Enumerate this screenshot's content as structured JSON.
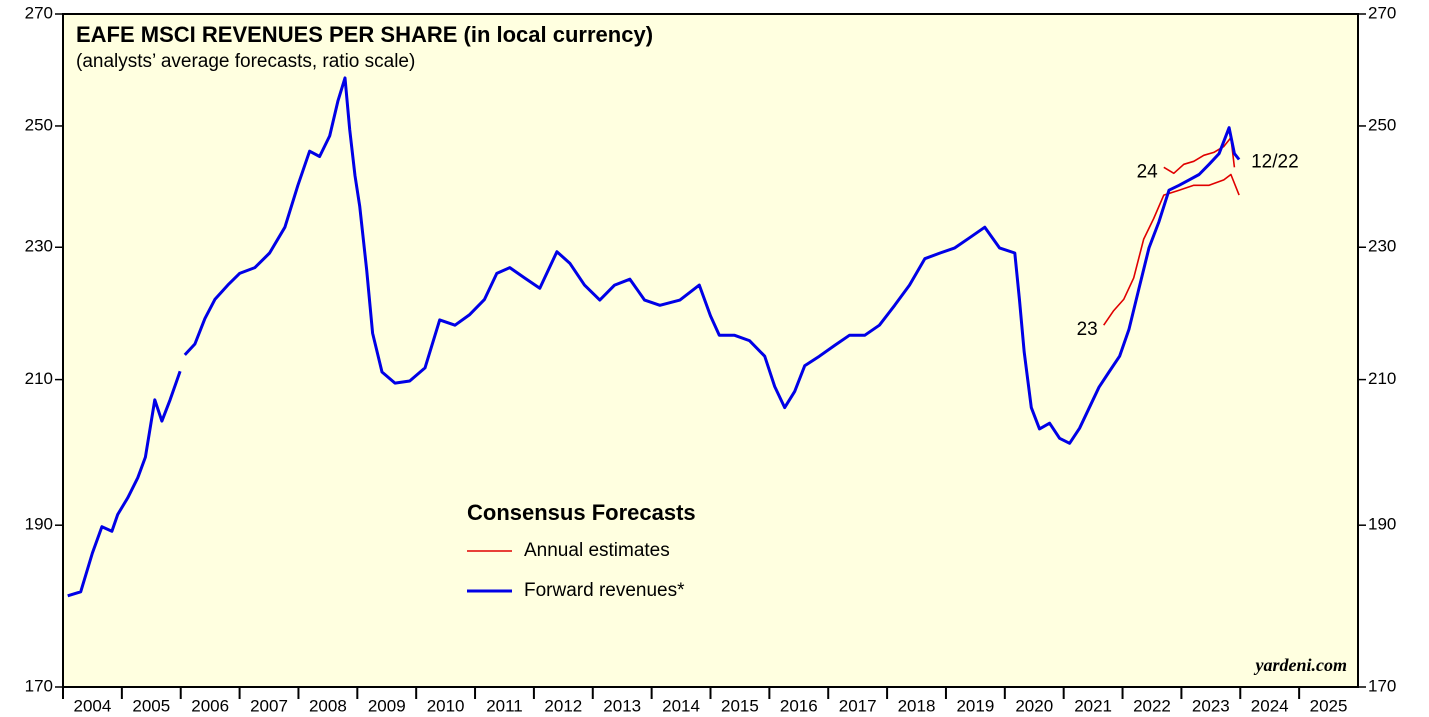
{
  "chart_data": {
    "type": "line",
    "title": "EAFE MSCI REVENUES PER SHARE (in local currency)",
    "subtitle": "(analysts’ average forecasts, ratio scale)",
    "legend_title": "Consensus Forecasts",
    "source": "yardeni.com",
    "log_scale": true,
    "ylim": [
      170,
      270
    ],
    "yticks": [
      170,
      190,
      210,
      230,
      250,
      270
    ],
    "xlim": [
      2004,
      2026
    ],
    "xticks": [
      2004,
      2005,
      2006,
      2007,
      2008,
      2009,
      2010,
      2011,
      2012,
      2013,
      2014,
      2015,
      2016,
      2017,
      2018,
      2019,
      2020,
      2021,
      2022,
      2023,
      2024,
      2025
    ],
    "series": [
      {
        "name": "Annual estimates",
        "label": "23",
        "color": "#e00000",
        "width": 1.6,
        "x": [
          2021.68,
          2021.85,
          2022.02,
          2022.19,
          2022.36,
          2022.53,
          2022.7,
          2022.96,
          2023.21,
          2023.47,
          2023.72,
          2023.84,
          2023.98
        ],
        "values": [
          218,
          220.2,
          221.9,
          225.2,
          231.3,
          234.6,
          238.4,
          239.2,
          240,
          240,
          240.9,
          241.8,
          238.4
        ]
      },
      {
        "label": "24",
        "color": "#e00000",
        "width": 1.6,
        "x": [
          2022.7,
          2022.87,
          2023.04,
          2023.21,
          2023.38,
          2023.55,
          2023.72,
          2023.84,
          2023.9
        ],
        "values": [
          243,
          242,
          243.5,
          244,
          245,
          245.5,
          246.5,
          248,
          243
        ]
      },
      {
        "name": "Forward revenues*",
        "label": "12/22",
        "color": "#0000e6",
        "width": 3,
        "x": [
          2004.08,
          2004.3,
          2004.5,
          2004.66,
          2004.83,
          2004.93,
          2005.1,
          2005.27,
          2005.4,
          2005.56,
          2005.68,
          2005.82,
          2005.99,
          2006.03,
          2006.07,
          2006.24,
          2006.41,
          2006.58,
          2006.8,
          2007.0,
          2007.26,
          2007.51,
          2007.77,
          2007.99,
          2008.19,
          2008.36,
          2008.53,
          2008.67,
          2008.79,
          2008.87,
          2008.96,
          2009.04,
          2009.16,
          2009.26,
          2009.42,
          2009.64,
          2009.89,
          2010.15,
          2010.4,
          2010.66,
          2010.91,
          2011.16,
          2011.37,
          2011.59,
          2011.84,
          2012.1,
          2012.39,
          2012.61,
          2012.86,
          2013.12,
          2013.37,
          2013.63,
          2013.88,
          2014.14,
          2014.48,
          2014.81,
          2015.0,
          2015.15,
          2015.41,
          2015.66,
          2015.92,
          2016.09,
          2016.26,
          2016.43,
          2016.6,
          2016.85,
          2017.11,
          2017.36,
          2017.62,
          2017.87,
          2018.13,
          2018.38,
          2018.64,
          2018.9,
          2019.15,
          2019.4,
          2019.66,
          2019.91,
          2020.17,
          2020.25,
          2020.33,
          2020.45,
          2020.59,
          2020.76,
          2020.93,
          2021.1,
          2021.27,
          2021.43,
          2021.6,
          2021.77,
          2021.95,
          2022.11,
          2022.28,
          2022.45,
          2022.62,
          2022.79,
          2022.96,
          2023.13,
          2023.3,
          2023.47,
          2023.64,
          2023.81,
          2023.9,
          2023.98
        ],
        "values": [
          181,
          181.5,
          186.4,
          189.8,
          189.2,
          191.4,
          193.6,
          196.3,
          199.1,
          207.1,
          204.1,
          207.1,
          211.2,
          null,
          213.6,
          215.2,
          219,
          221.9,
          224.1,
          225.9,
          226.8,
          229.1,
          233.2,
          240,
          245.7,
          244.8,
          248.3,
          254.3,
          258.4,
          249.4,
          241.6,
          236.6,
          226.4,
          216.8,
          211.1,
          209.5,
          209.8,
          211.7,
          218.8,
          218,
          219.6,
          221.9,
          225.9,
          226.8,
          225.2,
          223.6,
          229.3,
          227.5,
          224.1,
          221.8,
          224.1,
          225,
          221.8,
          221,
          221.8,
          224.1,
          219.4,
          216.5,
          216.5,
          215.7,
          213.4,
          209,
          206,
          208.3,
          212,
          213.4,
          215,
          216.5,
          216.5,
          218,
          221,
          224.1,
          228.2,
          229.1,
          229.9,
          231.5,
          233.2,
          229.9,
          229.1,
          221.8,
          214,
          206,
          203,
          203.8,
          201.7,
          201,
          203.1,
          205.9,
          208.9,
          211.1,
          213.4,
          217.4,
          223.6,
          229.9,
          234.1,
          239.2,
          240,
          240.9,
          241.8,
          243.5,
          245.3,
          249.7,
          245.3,
          244.3
        ]
      }
    ]
  }
}
